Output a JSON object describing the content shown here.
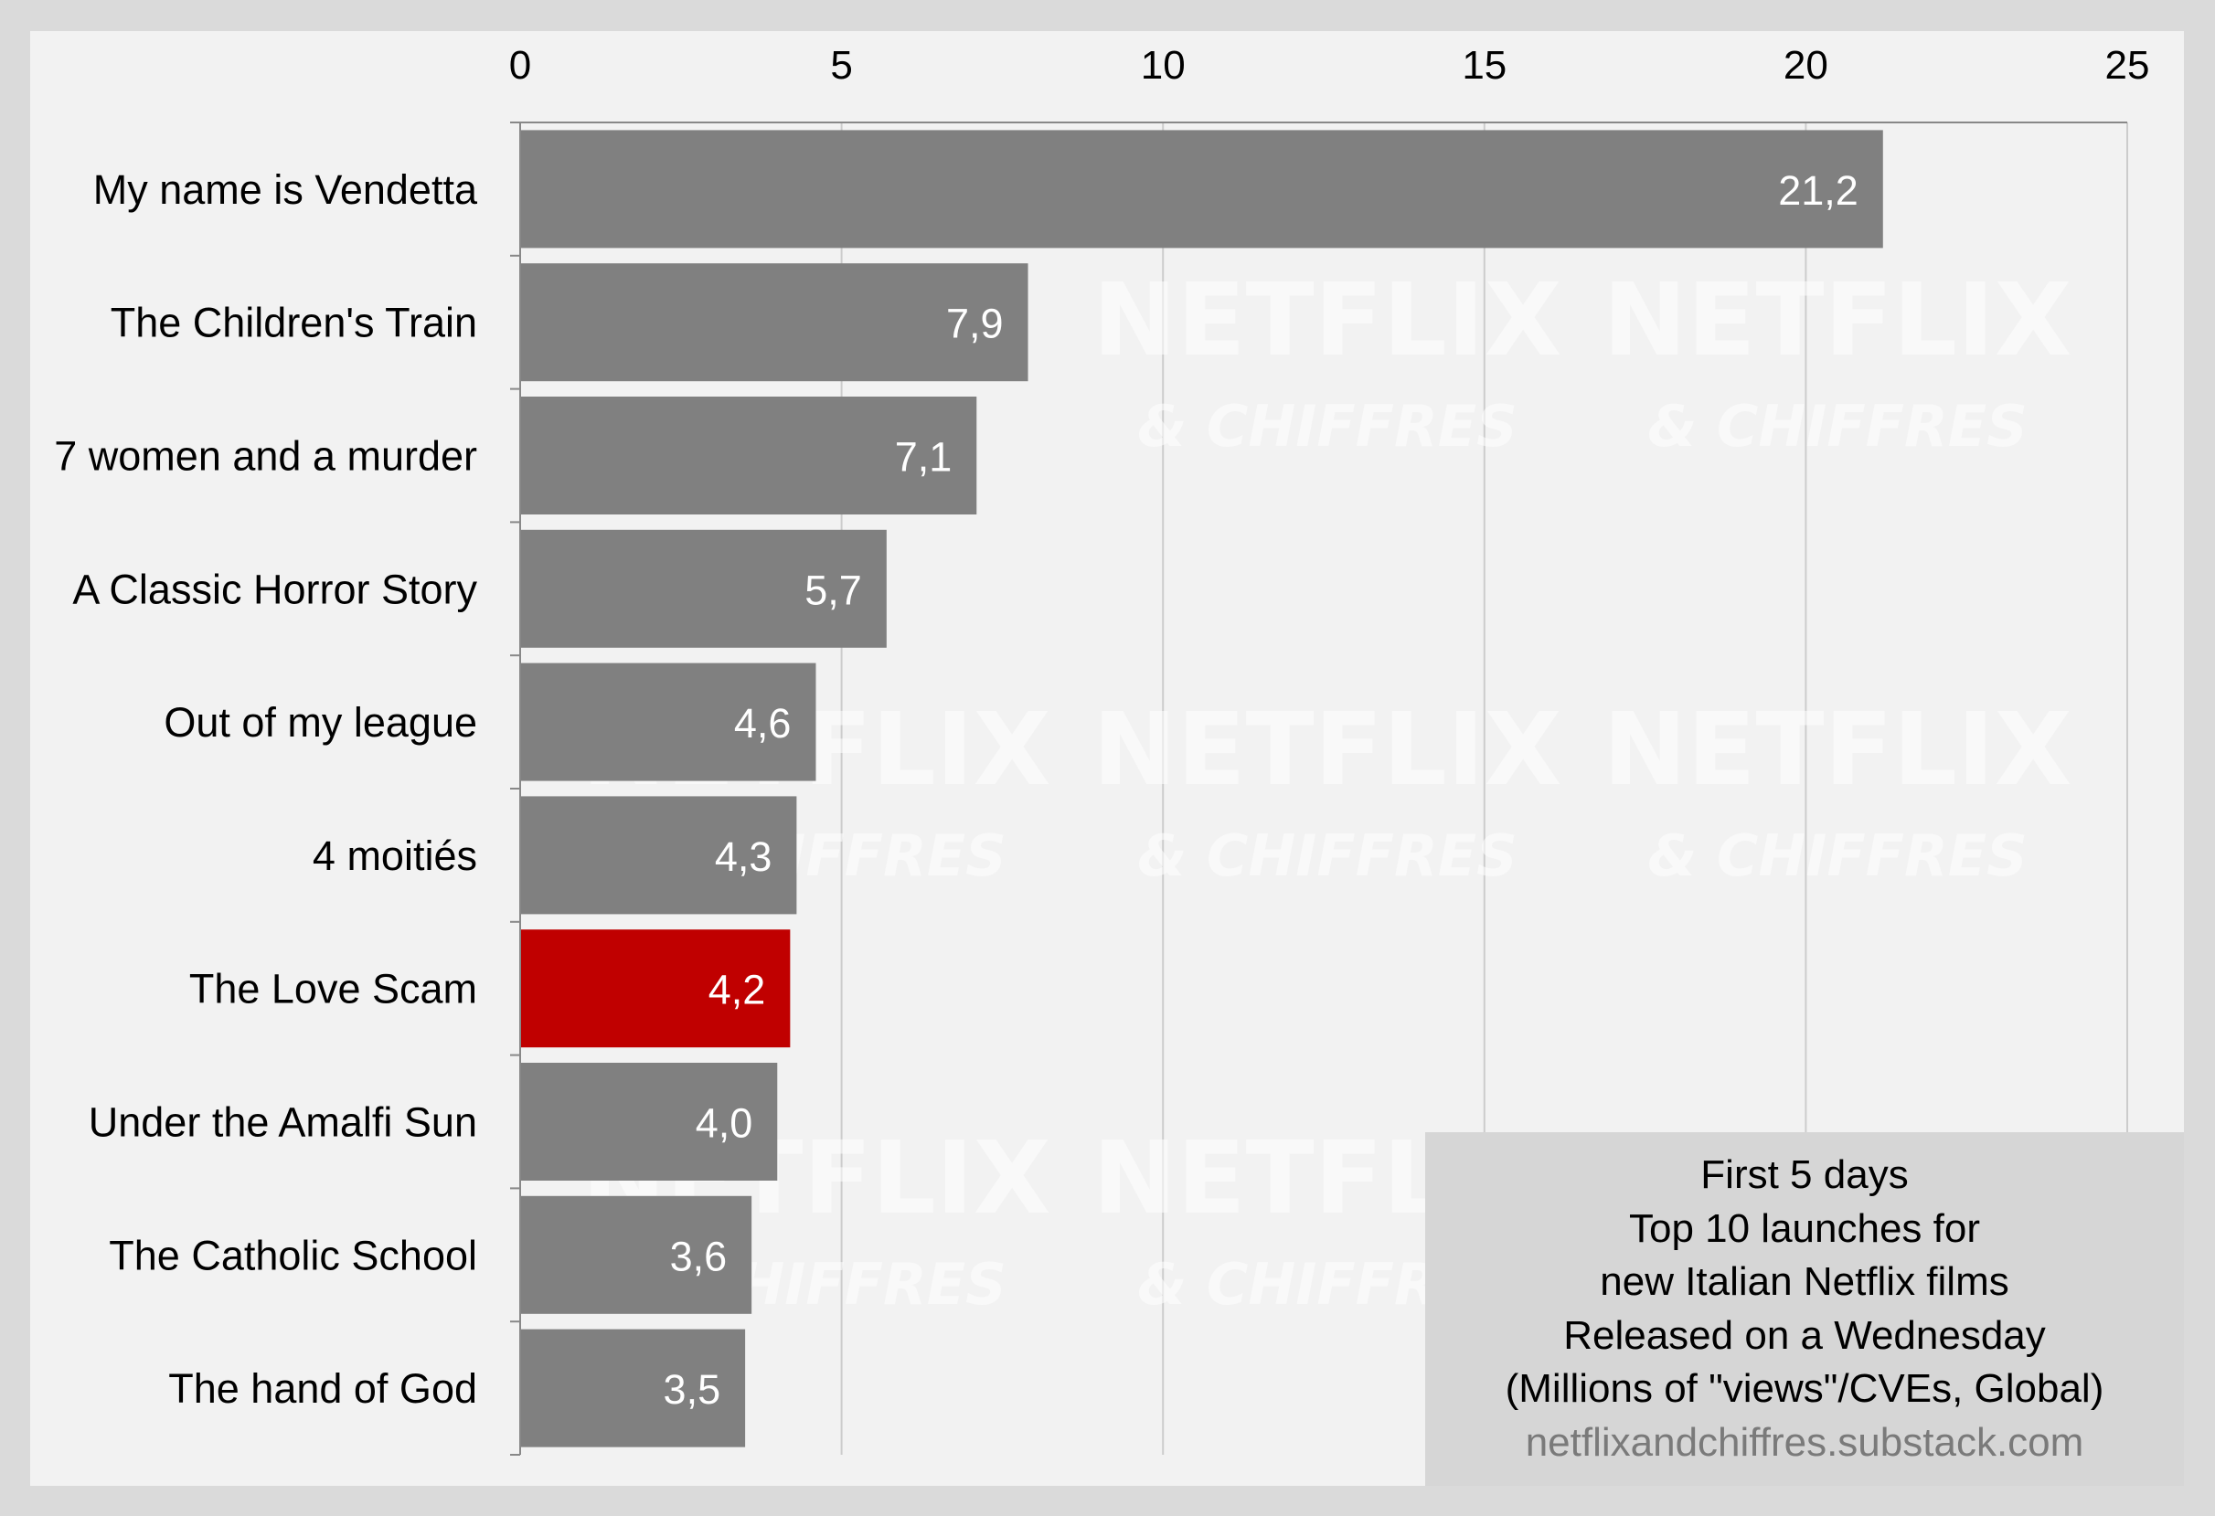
{
  "chart_data": {
    "type": "bar",
    "orientation": "horizontal",
    "categories": [
      "My name is Vendetta",
      "The Children's Train",
      "7 women and a murder",
      "A Classic Horror Story",
      "Out of my league",
      "4 moitiés",
      "The Love Scam",
      "Under the Amalfi Sun",
      "The Catholic School",
      "The hand of God"
    ],
    "values": [
      21.2,
      7.9,
      7.1,
      5.7,
      4.6,
      4.3,
      4.2,
      4.0,
      3.6,
      3.5
    ],
    "value_labels": [
      "21,2",
      "7,9",
      "7,1",
      "5,7",
      "4,6",
      "4,3",
      "4,2",
      "4,0",
      "3,6",
      "3,5"
    ],
    "highlight_category": "The Love Scam",
    "xlim": [
      0,
      25
    ],
    "xticks": [
      0,
      5,
      10,
      15,
      20,
      25
    ],
    "x_axis_position": "top",
    "grid": true,
    "legend": "none"
  },
  "caption": {
    "lines": [
      "First 5 days",
      "Top 10 launches for",
      "new Italian Netflix films",
      "Released on a Wednesday",
      "(Millions of \"views\"/CVEs, Global)"
    ],
    "source": "netflixandchiffres.substack.com"
  },
  "watermark": {
    "brand": "NETFLIX",
    "tagline": "& CHIFFRES"
  },
  "colors": {
    "bar": "#808080",
    "highlight_bar": "#c00000",
    "grid": "#cccccc",
    "axis": "#888888",
    "value_text": "#ffffff"
  }
}
